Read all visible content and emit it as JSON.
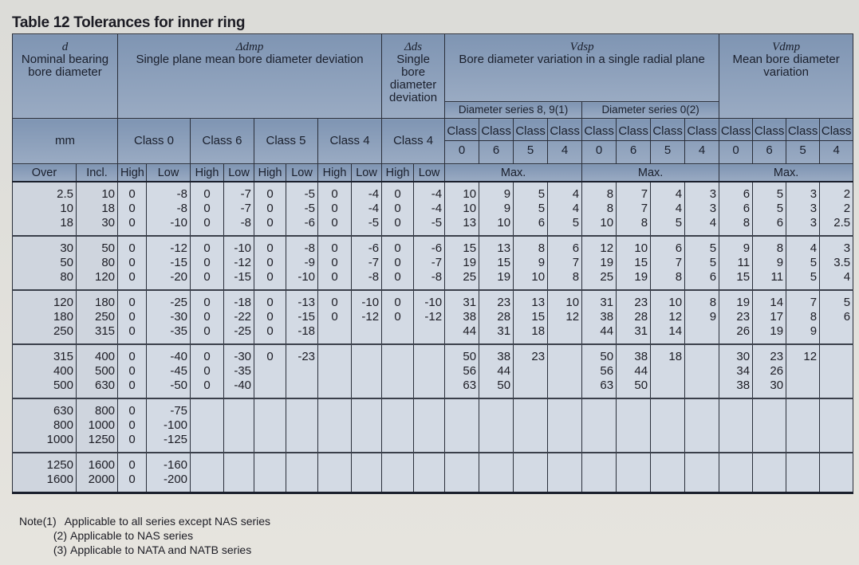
{
  "title": "Table 12  Tolerances for inner ring",
  "header": {
    "d": {
      "symbol": "d",
      "label": "Nominal bearing bore diameter",
      "unit": "mm",
      "over": "Over",
      "incl": "Incl."
    },
    "dmp": {
      "symbol": "Δdmp",
      "label": "Single plane mean bore diameter deviation",
      "classes": [
        "Class 0",
        "Class 6",
        "Class 5",
        "Class 4"
      ]
    },
    "ds": {
      "symbol": "Δds",
      "label": "Single bore diameter deviation",
      "classes": [
        "Class 4"
      ]
    },
    "vdsp": {
      "symbol": "Vdsp",
      "label": "Bore diameter variation in a single radial plane",
      "series": [
        "Diameter series 8, 9(1)",
        "Diameter series 0(2)"
      ],
      "classes": [
        "0",
        "6",
        "5",
        "4",
        "0",
        "6",
        "5",
        "4"
      ]
    },
    "vdmp": {
      "symbol": "Vdmp",
      "label": "Mean bore diameter variation",
      "classes": [
        "0",
        "6",
        "5",
        "4"
      ]
    },
    "class_word": "Class",
    "high": "High",
    "low": "Low",
    "max": "Max."
  },
  "groups": [
    3,
    3,
    3,
    3,
    3,
    2
  ],
  "rows": [
    [
      "2.5",
      "10",
      "0",
      "-8",
      "0",
      "-7",
      "0",
      "-5",
      "0",
      "-4",
      "0",
      "-4",
      "10",
      "9",
      "5",
      "4",
      "8",
      "7",
      "4",
      "3",
      "6",
      "5",
      "3",
      "2"
    ],
    [
      "10",
      "18",
      "0",
      "-8",
      "0",
      "-7",
      "0",
      "-5",
      "0",
      "-4",
      "0",
      "-4",
      "10",
      "9",
      "5",
      "4",
      "8",
      "7",
      "4",
      "3",
      "6",
      "5",
      "3",
      "2"
    ],
    [
      "18",
      "30",
      "0",
      "-10",
      "0",
      "-8",
      "0",
      "-6",
      "0",
      "-5",
      "0",
      "-5",
      "13",
      "10",
      "6",
      "5",
      "10",
      "8",
      "5",
      "4",
      "8",
      "6",
      "3",
      "2.5"
    ],
    [
      "30",
      "50",
      "0",
      "-12",
      "0",
      "-10",
      "0",
      "-8",
      "0",
      "-6",
      "0",
      "-6",
      "15",
      "13",
      "8",
      "6",
      "12",
      "10",
      "6",
      "5",
      "9",
      "8",
      "4",
      "3"
    ],
    [
      "50",
      "80",
      "0",
      "-15",
      "0",
      "-12",
      "0",
      "-9",
      "0",
      "-7",
      "0",
      "-7",
      "19",
      "15",
      "9",
      "7",
      "19",
      "15",
      "7",
      "5",
      "11",
      "9",
      "5",
      "3.5"
    ],
    [
      "80",
      "120",
      "0",
      "-20",
      "0",
      "-15",
      "0",
      "-10",
      "0",
      "-8",
      "0",
      "-8",
      "25",
      "19",
      "10",
      "8",
      "25",
      "19",
      "8",
      "6",
      "15",
      "11",
      "5",
      "4"
    ],
    [
      "120",
      "180",
      "0",
      "-25",
      "0",
      "-18",
      "0",
      "-13",
      "0",
      "-10",
      "0",
      "-10",
      "31",
      "23",
      "13",
      "10",
      "31",
      "23",
      "10",
      "8",
      "19",
      "14",
      "7",
      "5"
    ],
    [
      "180",
      "250",
      "0",
      "-30",
      "0",
      "-22",
      "0",
      "-15",
      "0",
      "-12",
      "0",
      "-12",
      "38",
      "28",
      "15",
      "12",
      "38",
      "28",
      "12",
      "9",
      "23",
      "17",
      "8",
      "6"
    ],
    [
      "250",
      "315",
      "0",
      "-35",
      "0",
      "-25",
      "0",
      "-18",
      "",
      "",
      "",
      "",
      "44",
      "31",
      "18",
      "",
      "44",
      "31",
      "14",
      "",
      "26",
      "19",
      "9",
      ""
    ],
    [
      "315",
      "400",
      "0",
      "-40",
      "0",
      "-30",
      "0",
      "-23",
      "",
      "",
      "",
      "",
      "50",
      "38",
      "23",
      "",
      "50",
      "38",
      "18",
      "",
      "30",
      "23",
      "12",
      ""
    ],
    [
      "400",
      "500",
      "0",
      "-45",
      "0",
      "-35",
      "",
      "",
      "",
      "",
      "",
      "",
      "56",
      "44",
      "",
      "",
      "56",
      "44",
      "",
      "",
      "34",
      "26",
      "",
      ""
    ],
    [
      "500",
      "630",
      "0",
      "-50",
      "0",
      "-40",
      "",
      "",
      "",
      "",
      "",
      "",
      "63",
      "50",
      "",
      "",
      "63",
      "50",
      "",
      "",
      "38",
      "30",
      "",
      ""
    ],
    [
      "630",
      "800",
      "0",
      "-75",
      "",
      "",
      "",
      "",
      "",
      "",
      "",
      "",
      "",
      "",
      "",
      "",
      "",
      "",
      "",
      "",
      "",
      "",
      "",
      ""
    ],
    [
      "800",
      "1000",
      "0",
      "-100",
      "",
      "",
      "",
      "",
      "",
      "",
      "",
      "",
      "",
      "",
      "",
      "",
      "",
      "",
      "",
      "",
      "",
      "",
      "",
      ""
    ],
    [
      "1000",
      "1250",
      "0",
      "-125",
      "",
      "",
      "",
      "",
      "",
      "",
      "",
      "",
      "",
      "",
      "",
      "",
      "",
      "",
      "",
      "",
      "",
      "",
      "",
      ""
    ],
    [
      "1250",
      "1600",
      "0",
      "-160",
      "",
      "",
      "",
      "",
      "",
      "",
      "",
      "",
      "",
      "",
      "",
      "",
      "",
      "",
      "",
      "",
      "",
      "",
      "",
      ""
    ],
    [
      "1600",
      "2000",
      "0",
      "-200",
      "",
      "",
      "",
      "",
      "",
      "",
      "",
      "",
      "",
      "",
      "",
      "",
      "",
      "",
      "",
      "",
      "",
      "",
      "",
      ""
    ]
  ],
  "notes": {
    "label": "Note",
    "items": [
      {
        "mark": "(1)",
        "text": "Applicable to all series except NAS series"
      },
      {
        "mark": "(2)",
        "text": "Applicable to NAS series"
      },
      {
        "mark": "(3)",
        "text": "Applicable to NATA and NATB series"
      }
    ]
  }
}
